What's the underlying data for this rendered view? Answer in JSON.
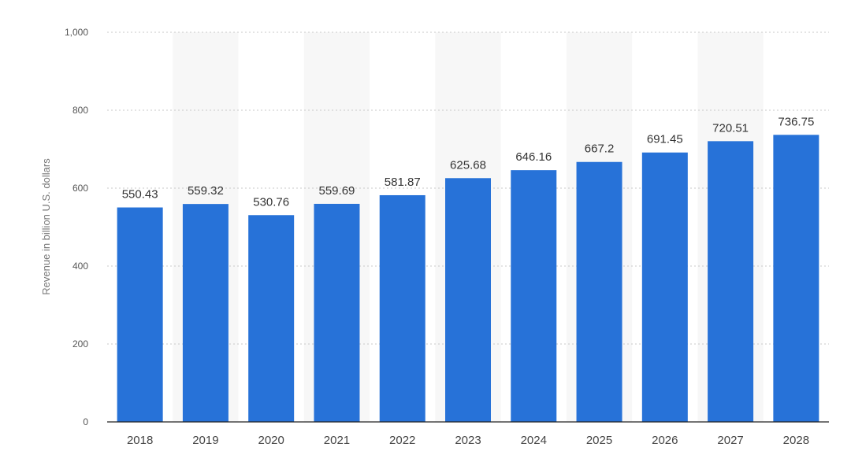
{
  "chart_data": {
    "type": "bar",
    "title": "",
    "xlabel": "",
    "ylabel": "Revenue in billion U.S. dollars",
    "categories": [
      "2018",
      "2019",
      "2020",
      "2021",
      "2022",
      "2023",
      "2024",
      "2025",
      "2026",
      "2027",
      "2028"
    ],
    "values": [
      550.43,
      559.32,
      530.76,
      559.69,
      581.87,
      625.68,
      646.16,
      667.2,
      691.45,
      720.51,
      736.75
    ],
    "value_labels": [
      "550.43",
      "559.32",
      "530.76",
      "559.69",
      "581.87",
      "625.68",
      "646.16",
      "667.2",
      "691.45",
      "720.51",
      "736.75"
    ],
    "ylim": [
      0,
      1000
    ],
    "yticks": [
      0,
      200,
      400,
      600,
      800,
      1000
    ],
    "ytick_labels": [
      "0",
      "200",
      "400",
      "600",
      "800",
      "1,000"
    ],
    "grid": true,
    "legend": "none",
    "bar_color": "#2772d8"
  }
}
